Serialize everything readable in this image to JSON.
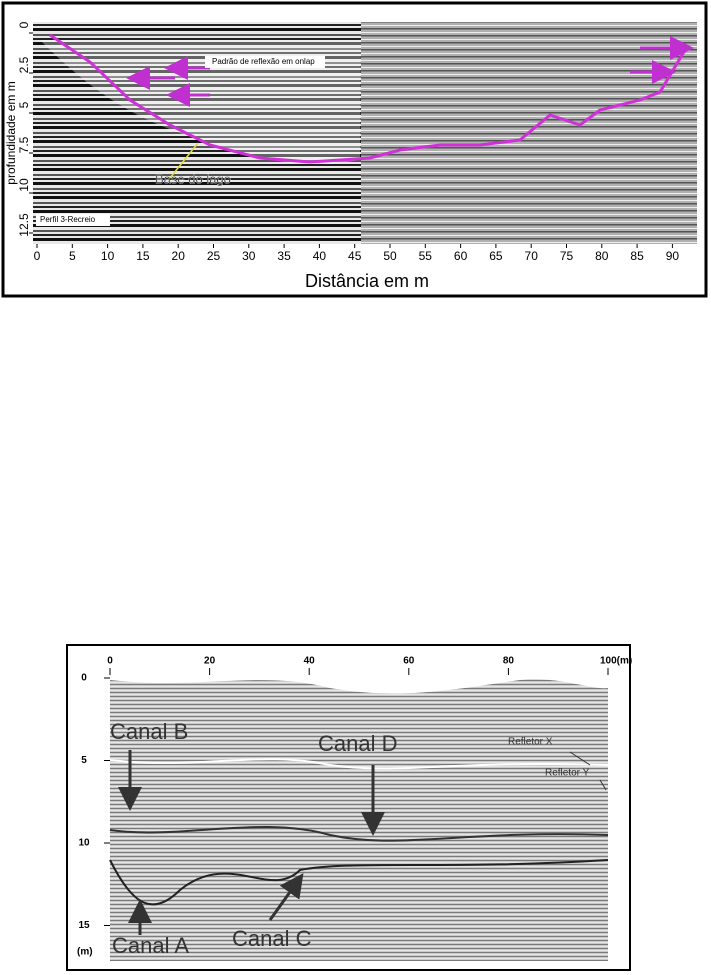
{
  "figure_1": {
    "y_axis_label": "profundidade em m",
    "x_axis_label": "Distância em m",
    "yticks": [
      0,
      2.5,
      5,
      7.5,
      10,
      12.5
    ],
    "xticks": [
      0,
      5,
      10,
      15,
      20,
      25,
      30,
      35,
      40,
      45,
      50,
      55,
      60,
      65,
      70,
      75,
      80,
      85,
      90
    ],
    "annotations": [
      "Padrão de reflexão em onlap",
      "Base do lago",
      "Perfil 3-Recreio"
    ]
  },
  "figure_2": {
    "xticks": [
      0,
      20,
      40,
      60,
      80,
      {
        "value": 100,
        "label": "100(m)"
      }
    ],
    "yticks": [
      0,
      5,
      10,
      15
    ],
    "y_unit": "(m)",
    "annotations": [
      "Canal B",
      "Canal D",
      "Refletor X",
      "Refletor Y",
      "Canal A",
      "Canal C"
    ]
  }
}
